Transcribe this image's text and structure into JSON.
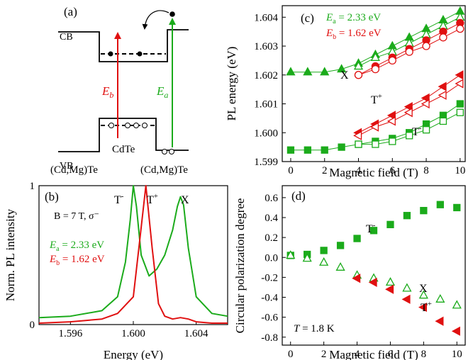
{
  "colors": {
    "green": "#1bab1b",
    "red": "#e01010",
    "black": "#000000"
  },
  "panel_a": {
    "label": "(a)",
    "cb": "CB",
    "vb": "VB",
    "eb": "E",
    "eb_sub": "b",
    "ea": "E",
    "ea_sub": "a",
    "well": "CdTe",
    "barrier_left": "(Cd,Mg)Te",
    "barrier_right": "(Cd,Mg)Te"
  },
  "chart_data": [
    {
      "panel": "(b)",
      "type": "line",
      "xlabel": "Energy (eV)",
      "ylabel": "Norm. PL intensity",
      "xlim": [
        1.594,
        1.606
      ],
      "ylim": [
        0,
        1
      ],
      "xticks": [
        "1.596",
        "1.600",
        "1.604"
      ],
      "yticks": [
        "0",
        "1"
      ],
      "condition": "B = 7 T, σ⁻",
      "legend": [
        {
          "var": "E",
          "sub": "a",
          "text": " = 2.33 eV",
          "color": "#1bab1b"
        },
        {
          "var": "E",
          "sub": "b",
          "text": " = 1.62 eV",
          "color": "#e01010"
        }
      ],
      "peak_labels": [
        {
          "base": "T",
          "sup": "-",
          "x": 1.6,
          "y": 1.0
        },
        {
          "base": "T",
          "sup": "+",
          "x": 1.6008,
          "y": 1.0
        },
        {
          "base": "X",
          "sup": "",
          "x": 1.6031,
          "y": 0.98
        }
      ],
      "series": [
        {
          "color": "#1bab1b",
          "x": [
            1.594,
            1.596,
            1.598,
            1.599,
            1.5995,
            1.5998,
            1.6,
            1.6002,
            1.6005,
            1.601,
            1.6015,
            1.602,
            1.6025,
            1.6028,
            1.603,
            1.6032,
            1.6035,
            1.604,
            1.605,
            1.606
          ],
          "y": [
            0.05,
            0.06,
            0.1,
            0.2,
            0.45,
            0.75,
            1.0,
            0.85,
            0.5,
            0.35,
            0.4,
            0.5,
            0.68,
            0.85,
            0.92,
            0.86,
            0.55,
            0.2,
            0.08,
            0.06
          ]
        },
        {
          "color": "#e01010",
          "x": [
            1.594,
            1.596,
            1.598,
            1.599,
            1.6,
            1.6004,
            1.6008,
            1.6012,
            1.6016,
            1.602,
            1.6025,
            1.603,
            1.6035,
            1.604,
            1.605,
            1.606
          ],
          "y": [
            0.01,
            0.02,
            0.04,
            0.08,
            0.2,
            0.6,
            1.0,
            0.55,
            0.15,
            0.06,
            0.04,
            0.05,
            0.04,
            0.02,
            0.01,
            0.01
          ]
        }
      ]
    },
    {
      "panel": "(c)",
      "type": "scatter",
      "xlabel": "Magnetic field (T)",
      "ylabel": "PL energy (eV)",
      "xlim": [
        -0.5,
        10.3
      ],
      "ylim": [
        1.599,
        1.6044
      ],
      "xticks": [
        "0",
        "2",
        "4",
        "6",
        "8",
        "10"
      ],
      "yticks": [
        "1.599",
        "1.600",
        "1.601",
        "1.602",
        "1.603",
        "1.604"
      ],
      "legend": [
        {
          "var": "E",
          "sub": "a",
          "text": " = 2.33 eV",
          "color": "#1bab1b"
        },
        {
          "var": "E",
          "sub": "b",
          "text": " = 1.62 eV",
          "color": "#e01010"
        }
      ],
      "labels": [
        {
          "base": "X",
          "sup": ""
        },
        {
          "base": "T",
          "sup": "+"
        },
        {
          "base": "T",
          "sup": "-"
        }
      ],
      "series": [
        {
          "color": "#1bab1b",
          "marker": "triangle-up",
          "filled": true,
          "x": [
            0,
            1,
            2,
            3,
            4,
            5,
            6,
            7,
            8,
            9,
            10
          ],
          "y": [
            1.6021,
            1.6021,
            1.6021,
            1.6022,
            1.6024,
            1.6027,
            1.603,
            1.6033,
            1.6036,
            1.6039,
            1.6042
          ]
        },
        {
          "color": "#1bab1b",
          "marker": "triangle-up",
          "filled": false,
          "x": [
            4,
            5,
            6,
            7,
            8,
            9,
            10
          ],
          "y": [
            1.6023,
            1.6026,
            1.6028,
            1.6031,
            1.6034,
            1.6037,
            1.604
          ]
        },
        {
          "color": "#e01010",
          "marker": "circle",
          "filled": true,
          "x": [
            4,
            5,
            6,
            7,
            8,
            9,
            10
          ],
          "y": [
            1.602,
            1.6023,
            1.6026,
            1.6029,
            1.6032,
            1.6035,
            1.6038
          ]
        },
        {
          "color": "#e01010",
          "marker": "circle",
          "filled": false,
          "x": [
            4,
            5,
            6,
            7,
            8,
            9,
            10
          ],
          "y": [
            1.602,
            1.6022,
            1.6025,
            1.6028,
            1.603,
            1.6033,
            1.6036
          ]
        },
        {
          "color": "#e01010",
          "marker": "triangle-left",
          "filled": true,
          "x": [
            4,
            5,
            6,
            7,
            8,
            9,
            10
          ],
          "y": [
            1.6,
            1.6003,
            1.6006,
            1.6009,
            1.6012,
            1.6016,
            1.602
          ]
        },
        {
          "color": "#e01010",
          "marker": "triangle-left",
          "filled": false,
          "x": [
            4,
            5,
            6,
            7,
            8,
            9,
            10
          ],
          "y": [
            1.5999,
            1.6002,
            1.6004,
            1.6007,
            1.601,
            1.6013,
            1.6017
          ]
        },
        {
          "color": "#1bab1b",
          "marker": "square",
          "filled": true,
          "x": [
            0,
            1,
            2,
            3,
            4,
            5,
            6,
            7,
            8,
            9,
            10
          ],
          "y": [
            1.5994,
            1.5994,
            1.5994,
            1.5995,
            1.5996,
            1.5997,
            1.5998,
            1.6,
            1.6003,
            1.6006,
            1.601
          ]
        },
        {
          "color": "#1bab1b",
          "marker": "square",
          "filled": false,
          "x": [
            4,
            5,
            6,
            7,
            8,
            9,
            10
          ],
          "y": [
            1.5996,
            1.5996,
            1.5997,
            1.5999,
            1.6001,
            1.6004,
            1.6007
          ]
        }
      ]
    },
    {
      "panel": "(d)",
      "type": "scatter",
      "xlabel": "Magnetic field (T)",
      "ylabel": "Circular polarization degree",
      "xlim": [
        -0.5,
        10.5
      ],
      "ylim": [
        -0.88,
        0.72
      ],
      "xticks": [
        "0",
        "2",
        "4",
        "6",
        "8",
        "10"
      ],
      "yticks": [
        "0.6",
        "0.4",
        "0.2",
        "0.0",
        "-0.2",
        "-0.4",
        "-0.6",
        "-0.8"
      ],
      "condition_var": "T",
      "condition_text": " = 1.8 K",
      "labels": [
        {
          "base": "T",
          "sup": "-"
        },
        {
          "base": "X",
          "sup": ""
        },
        {
          "base": "T",
          "sup": "+"
        }
      ],
      "series": [
        {
          "color": "#1bab1b",
          "marker": "square",
          "filled": true,
          "x": [
            0,
            1,
            2,
            3,
            4,
            5,
            6,
            7,
            8,
            9,
            10
          ],
          "y": [
            0.02,
            0.03,
            0.07,
            0.12,
            0.19,
            0.27,
            0.33,
            0.42,
            0.47,
            0.53,
            0.5
          ]
        },
        {
          "color": "#1bab1b",
          "marker": "triangle-up",
          "filled": false,
          "x": [
            0,
            1,
            2,
            3,
            4,
            5,
            6,
            7,
            8,
            9,
            10
          ],
          "y": [
            0.02,
            -0.01,
            -0.05,
            -0.1,
            -0.18,
            -0.21,
            -0.25,
            -0.31,
            -0.38,
            -0.42,
            -0.48
          ]
        },
        {
          "color": "#e01010",
          "marker": "triangle-left",
          "filled": true,
          "x": [
            4,
            5,
            6,
            7,
            8,
            9,
            10
          ],
          "y": [
            -0.21,
            -0.25,
            -0.32,
            -0.42,
            -0.5,
            -0.64,
            -0.74
          ]
        }
      ]
    }
  ]
}
